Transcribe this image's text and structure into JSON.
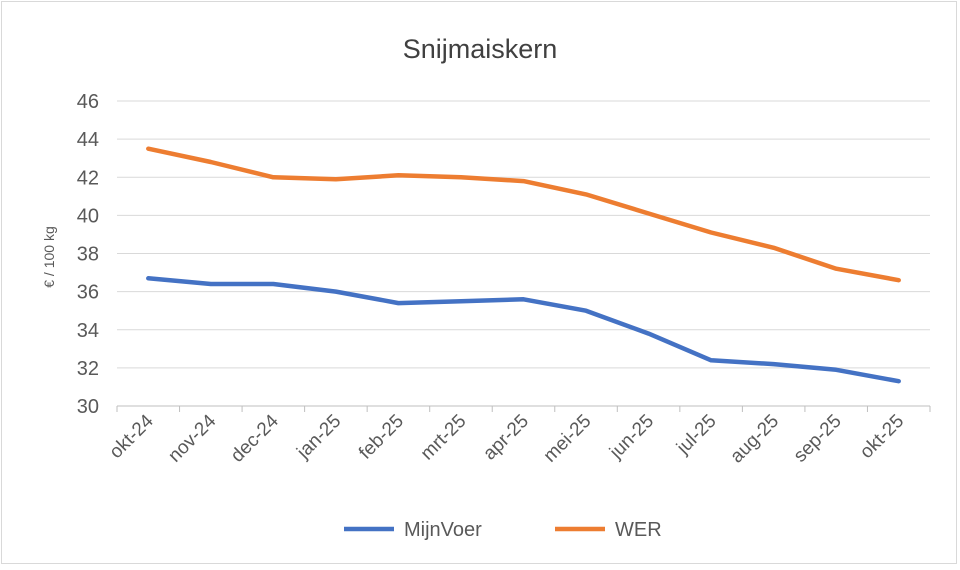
{
  "chart_data": {
    "type": "line",
    "title": "Snijmaiskern",
    "ylabel": "€ / 100 kg",
    "xlabel": "",
    "categories": [
      "okt-24",
      "nov-24",
      "dec-24",
      "jan-25",
      "feb-25",
      "mrt-25",
      "apr-25",
      "mei-25",
      "jun-25",
      "jul-25",
      "aug-25",
      "sep-25",
      "okt-25"
    ],
    "ylim": [
      30,
      46
    ],
    "yticks": [
      30,
      32,
      34,
      36,
      38,
      40,
      42,
      44,
      46
    ],
    "grid": true,
    "legend_position": "bottom",
    "series": [
      {
        "name": "MijnVoer",
        "color": "#4472c4",
        "values": [
          36.7,
          36.4,
          36.4,
          36.0,
          35.4,
          35.5,
          35.6,
          35.0,
          33.8,
          32.4,
          32.2,
          31.9,
          31.3
        ]
      },
      {
        "name": "WER",
        "color": "#ed7d31",
        "values": [
          43.5,
          42.8,
          42.0,
          41.9,
          42.1,
          42.0,
          41.8,
          41.1,
          40.1,
          39.1,
          38.3,
          37.2,
          36.6
        ]
      }
    ]
  }
}
